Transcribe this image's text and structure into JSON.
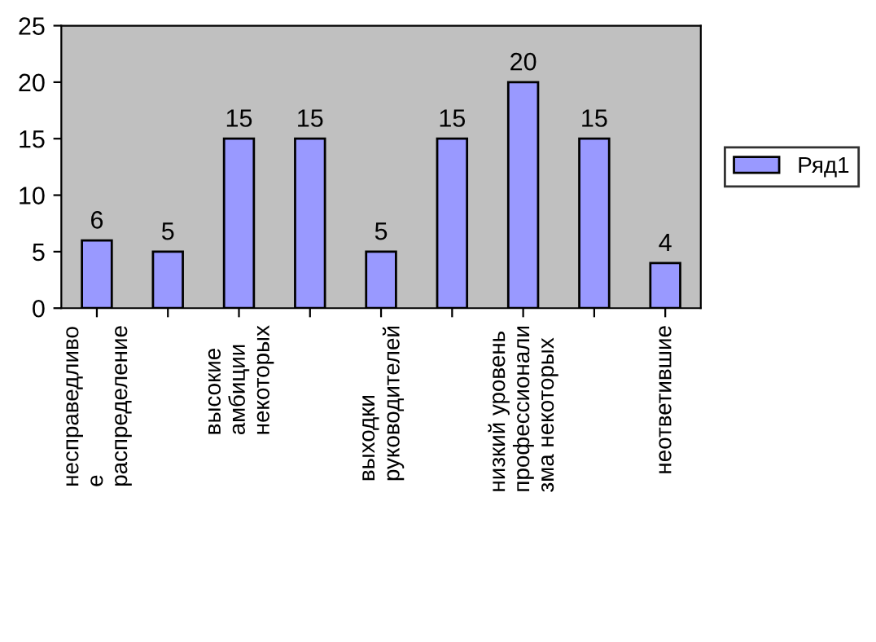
{
  "chart_data": {
    "type": "bar",
    "categories": [
      "несправедливо\nе\nраспределение",
      null,
      "высокие\nамбиции\nнекоторых",
      null,
      "выходки\nруководителей",
      null,
      "низкий уровень\nпрофессионали\nзма некоторых",
      null,
      "неответившие"
    ],
    "series": [
      {
        "name": "Ряд1",
        "color": "#9999ff",
        "values": [
          6,
          5,
          15,
          15,
          5,
          15,
          20,
          15,
          4
        ]
      }
    ],
    "ylim": [
      0,
      25
    ],
    "yticks": [
      0,
      5,
      10,
      15,
      20,
      25
    ],
    "data_labels": true,
    "legend": "right",
    "grid": false
  }
}
